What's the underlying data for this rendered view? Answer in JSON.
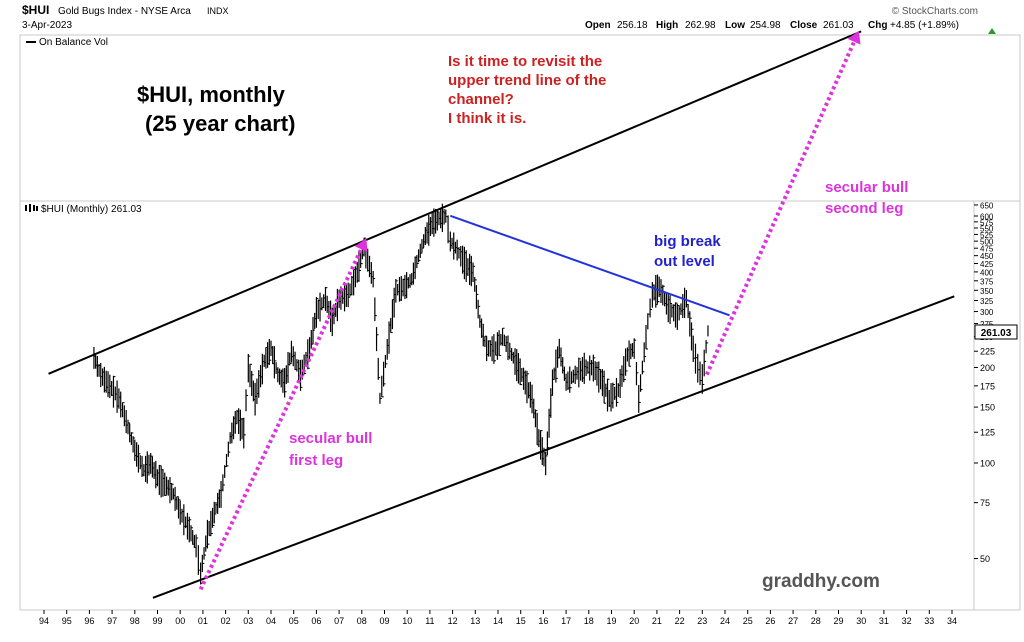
{
  "header": {
    "symbol": "$HUI",
    "name": "Gold Bugs Index - NYSE Arca",
    "exchange": "INDX",
    "date": "3-Apr-2023",
    "source": "© StockCharts.com",
    "open_label": "Open",
    "open": "256.18",
    "high_label": "High",
    "high": "262.98",
    "low_label": "Low",
    "low": "254.98",
    "close_label": "Close",
    "close": "261.03",
    "chg_label": "Chg",
    "chg": "+4.85 (+1.89%)"
  },
  "upper_panel": {
    "legend": "On Balance Vol"
  },
  "chart_title": {
    "line1": "$HUI, monthly",
    "line2": "(25 year chart)"
  },
  "question": {
    "line1": "Is it time to revisit the",
    "line2": "upper trend line of the",
    "line3": "channel?",
    "line4": "I think it is."
  },
  "price_legend": "$HUI (Monthly) 261.03",
  "last_price_label": "261.03",
  "annotations": {
    "first_leg_1": "secular bull",
    "first_leg_2": "first leg",
    "second_leg_1": "secular bull",
    "second_leg_2": "second leg",
    "breakout_1": "big break",
    "breakout_2": "out level",
    "watermark": "graddhy.com"
  },
  "colors": {
    "price": "#000000",
    "trendline": "#000000",
    "breakout_line": "#2233dd",
    "arrow": "#dd33dd",
    "question_text": "#cc2222",
    "breakout_text": "#2222cc",
    "annotation_text": "#dd33dd",
    "watermark": "#555555"
  },
  "chart_data": {
    "type": "line",
    "title": "$HUI (Monthly) 261.03",
    "y_scale": "log",
    "ylim": [
      38,
      650
    ],
    "y_ticks": [
      50,
      75,
      100,
      125,
      150,
      175,
      200,
      225,
      250,
      275,
      300,
      325,
      350,
      375,
      400,
      425,
      450,
      475,
      500,
      525,
      550,
      575,
      600,
      650
    ],
    "x_ticks": [
      "94",
      "95",
      "96",
      "97",
      "98",
      "99",
      "00",
      "01",
      "02",
      "03",
      "04",
      "05",
      "06",
      "07",
      "08",
      "09",
      "10",
      "11",
      "12",
      "13",
      "14",
      "15",
      "16",
      "17",
      "18",
      "19",
      "20",
      "21",
      "22",
      "23",
      "24",
      "25",
      "26",
      "27",
      "28",
      "29",
      "30",
      "31",
      "32",
      "33",
      "34"
    ],
    "grid": false,
    "series": [
      {
        "name": "$HUI",
        "x": [
          1996.2,
          1996.5,
          1996.9,
          1997.3,
          1997.7,
          1998.0,
          1998.4,
          1998.7,
          1999.0,
          1999.4,
          1999.7,
          2000.0,
          2000.4,
          2000.7,
          2000.9,
          2001.2,
          2001.5,
          2001.8,
          2002.2,
          2002.5,
          2002.8,
          2003.0,
          2003.3,
          2003.7,
          2004.0,
          2004.3,
          2004.6,
          2004.9,
          2005.3,
          2005.7,
          2006.0,
          2006.4,
          2006.7,
          2007.0,
          2007.4,
          2007.8,
          2008.1,
          2008.5,
          2008.8,
          2009.2,
          2009.5,
          2009.9,
          2010.2,
          2010.5,
          2010.8,
          2011.1,
          2011.4,
          2011.7,
          2011.9,
          2012.2,
          2012.6,
          2012.9,
          2013.2,
          2013.5,
          2013.9,
          2014.2,
          2014.6,
          2014.9,
          2015.2,
          2015.5,
          2015.8,
          2016.1,
          2016.4,
          2016.7,
          2017.0,
          2017.4,
          2017.8,
          2018.2,
          2018.6,
          2018.9,
          2019.3,
          2019.7,
          2020.0,
          2020.2,
          2020.6,
          2020.8,
          2021.1,
          2021.5,
          2021.9,
          2022.3,
          2022.6,
          2022.8,
          2023.0,
          2023.25
        ],
        "values": [
          215,
          190,
          175,
          160,
          130,
          110,
          95,
          100,
          90,
          85,
          80,
          70,
          62,
          55,
          45,
          60,
          70,
          80,
          120,
          140,
          125,
          200,
          160,
          210,
          230,
          190,
          180,
          225,
          190,
          230,
          300,
          330,
          280,
          330,
          340,
          400,
          480,
          380,
          160,
          250,
          350,
          360,
          380,
          450,
          520,
          570,
          590,
          600,
          500,
          470,
          420,
          400,
          280,
          230,
          230,
          250,
          220,
          200,
          180,
          160,
          120,
          100,
          180,
          230,
          180,
          190,
          200,
          200,
          180,
          160,
          170,
          220,
          230,
          160,
          280,
          340,
          360,
          310,
          290,
          330,
          230,
          200,
          185,
          261
        ]
      }
    ],
    "trendlines": [
      {
        "name": "upper channel",
        "x": [
          1994.2,
          2030.0
        ],
        "y": [
          191,
          2290
        ]
      },
      {
        "name": "lower channel",
        "x": [
          1998.8,
          2034.1
        ],
        "y": [
          37.6,
          335
        ]
      },
      {
        "name": "breakout level",
        "x": [
          2011.9,
          2024.2
        ],
        "y": [
          601,
          292
        ]
      }
    ],
    "arrows": [
      {
        "name": "secular bull first leg",
        "from": [
          2000.9,
          40
        ],
        "to": [
          2008.2,
          510
        ]
      },
      {
        "name": "secular bull second leg",
        "from": [
          2023.2,
          190
        ],
        "to": [
          2029.9,
          2300
        ]
      }
    ]
  }
}
